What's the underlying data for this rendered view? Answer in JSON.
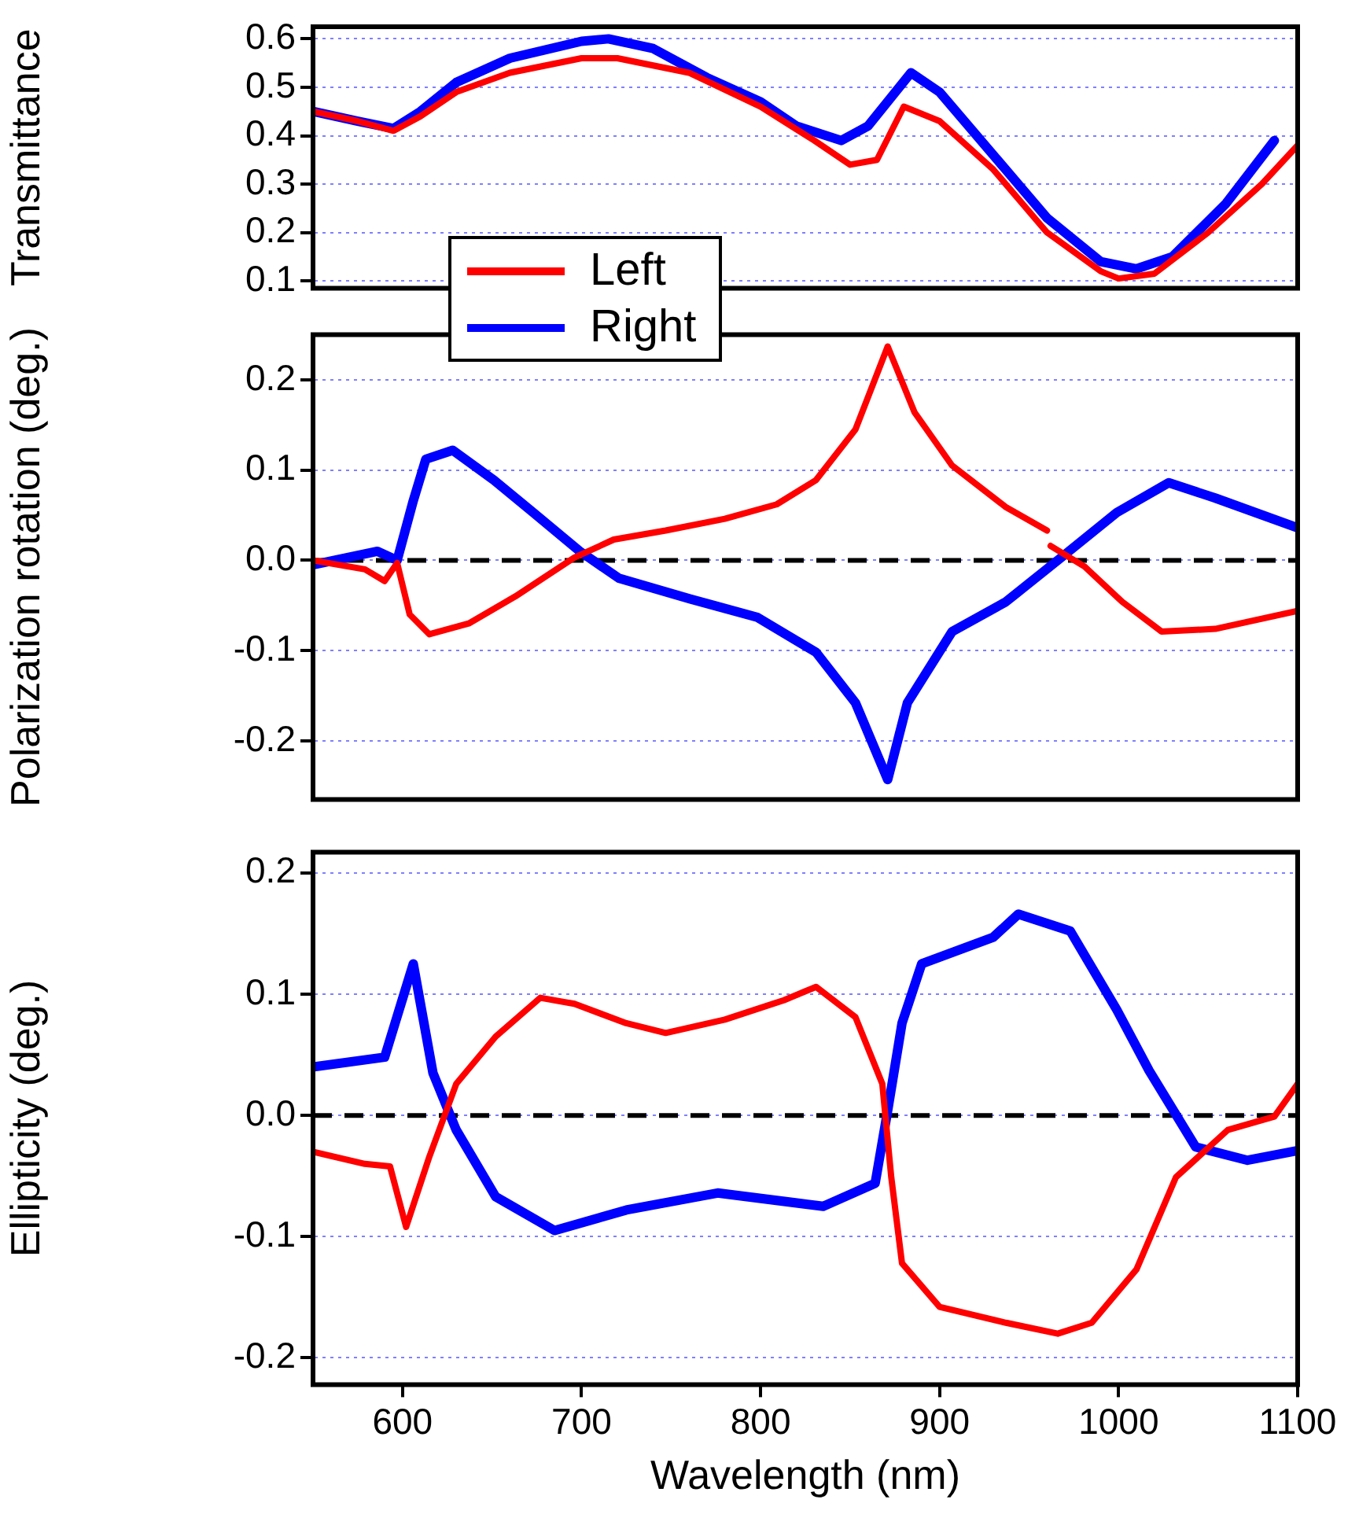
{
  "chart_data": [
    {
      "type": "line",
      "ylabel": "Transmittance",
      "xlim": [
        550,
        1100
      ],
      "ylim": [
        0.085,
        0.625
      ],
      "yticks": [
        0.1,
        0.2,
        0.3,
        0.4,
        0.5,
        0.6
      ],
      "grid": "y",
      "legend": "bottom left",
      "tick_labels": "y",
      "line_style": "solid",
      "marker": "none",
      "series": [
        {
          "name": "Left",
          "color": "#ff0000",
          "x": [
            550,
            575,
            595,
            610,
            630,
            660,
            700,
            720,
            760,
            800,
            830,
            850,
            865,
            880,
            900,
            930,
            960,
            990,
            1000,
            1020,
            1050,
            1080,
            1100
          ],
          "values": [
            0.45,
            0.43,
            0.41,
            0.44,
            0.49,
            0.53,
            0.56,
            0.56,
            0.53,
            0.46,
            0.39,
            0.34,
            0.35,
            0.46,
            0.43,
            0.33,
            0.2,
            0.12,
            0.105,
            0.115,
            0.2,
            0.3,
            0.38
          ]
        },
        {
          "name": "Right",
          "color": "#0000ff",
          "x": [
            550,
            575,
            595,
            610,
            630,
            660,
            700,
            715,
            740,
            770,
            800,
            820,
            845,
            860,
            884,
            900,
            930,
            960,
            990,
            1010,
            1030,
            1060,
            1087
          ],
          "values": [
            0.45,
            0.43,
            0.415,
            0.45,
            0.51,
            0.56,
            0.595,
            0.6,
            0.58,
            0.52,
            0.47,
            0.42,
            0.39,
            0.42,
            0.53,
            0.49,
            0.36,
            0.23,
            0.14,
            0.125,
            0.15,
            0.26,
            0.39
          ]
        }
      ]
    },
    {
      "type": "line",
      "ylabel": "Polarization rotation (deg.)",
      "xlim": [
        550,
        1100
      ],
      "ylim": [
        -0.265,
        0.25
      ],
      "yticks": [
        -0.2,
        -0.1,
        {
          "value": 0,
          "label": "0.0"
        },
        0.1,
        0.2
      ],
      "grid": "y",
      "tick_labels": "y",
      "line_style": "solid",
      "marker": "none",
      "ref_lines": [
        {
          "axis": "y",
          "value": 0,
          "color": "#000000",
          "line_style": "dashed"
        }
      ],
      "series": [
        {
          "color": "#ff0000",
          "x": [
            550,
            579,
            590,
            597,
            604,
            615,
            637,
            663,
            696,
            718,
            747,
            780,
            809,
            831,
            853,
            871,
            886,
            907,
            937,
            960,
            961,
            962,
            981,
            1002,
            1024,
            1054,
            1100
          ],
          "values": [
            0.0,
            -0.01,
            -0.023,
            -0.003,
            -0.06,
            -0.082,
            -0.07,
            -0.04,
            0.003,
            0.023,
            0.033,
            0.046,
            0.062,
            0.089,
            0.145,
            0.237,
            0.164,
            0.105,
            0.059,
            0.033,
            null,
            0.016,
            -0.007,
            -0.046,
            -0.079,
            -0.076,
            -0.056
          ]
        },
        {
          "color": "#0000ff",
          "x": [
            550,
            586,
            597,
            606,
            613,
            628,
            651,
            673,
            699,
            721,
            761,
            798,
            831,
            853,
            871,
            882,
            907,
            937,
            966,
            999,
            1028,
            1054,
            1100
          ],
          "values": [
            -0.005,
            0.01,
            0.0,
            0.066,
            0.112,
            0.122,
            0.089,
            0.053,
            0.01,
            -0.02,
            -0.043,
            -0.063,
            -0.102,
            -0.158,
            -0.243,
            -0.158,
            -0.079,
            -0.046,
            0.0,
            0.053,
            0.086,
            0.069,
            0.036
          ]
        }
      ]
    },
    {
      "type": "line",
      "ylabel": "Ellipticity (deg.)",
      "xlabel": "Wavelength (nm)",
      "xlim": [
        550,
        1100
      ],
      "xticks": [
        600,
        700,
        800,
        900,
        1000,
        1100
      ],
      "ylim": [
        -0.222,
        0.217
      ],
      "yticks": [
        -0.2,
        -0.1,
        {
          "value": 0,
          "label": "0.0"
        },
        0.1,
        0.2
      ],
      "grid": "y",
      "line_style": "solid",
      "marker": "none",
      "ref_lines": [
        {
          "axis": "y",
          "value": 0,
          "color": "#000000",
          "line_style": "dashed"
        }
      ],
      "series": [
        {
          "color": "#ff0000",
          "x": [
            550,
            579,
            593,
            602,
            615,
            630,
            652,
            677,
            696,
            725,
            747,
            780,
            813,
            831,
            853,
            868,
            873,
            879,
            900,
            937,
            966,
            985,
            1010,
            1032,
            1061,
            1087,
            1100
          ],
          "values": [
            -0.03,
            -0.04,
            -0.042,
            -0.092,
            -0.034,
            0.026,
            0.065,
            0.097,
            0.092,
            0.076,
            0.068,
            0.079,
            0.095,
            0.106,
            0.081,
            0.026,
            -0.051,
            -0.122,
            -0.158,
            -0.171,
            -0.18,
            -0.171,
            -0.127,
            -0.051,
            -0.012,
            -0.001,
            0.026
          ]
        },
        {
          "color": "#0000ff",
          "x": [
            550,
            590,
            606,
            617,
            630,
            652,
            685,
            725,
            776,
            835,
            864,
            871,
            879,
            890,
            930,
            944,
            973,
            999,
            1017,
            1043,
            1072,
            1100
          ],
          "values": [
            0.04,
            0.048,
            0.125,
            0.035,
            -0.012,
            -0.067,
            -0.095,
            -0.078,
            -0.064,
            -0.075,
            -0.056,
            0.004,
            0.076,
            0.125,
            0.147,
            0.166,
            0.152,
            0.087,
            0.037,
            -0.026,
            -0.037,
            -0.029
          ]
        }
      ]
    }
  ]
}
